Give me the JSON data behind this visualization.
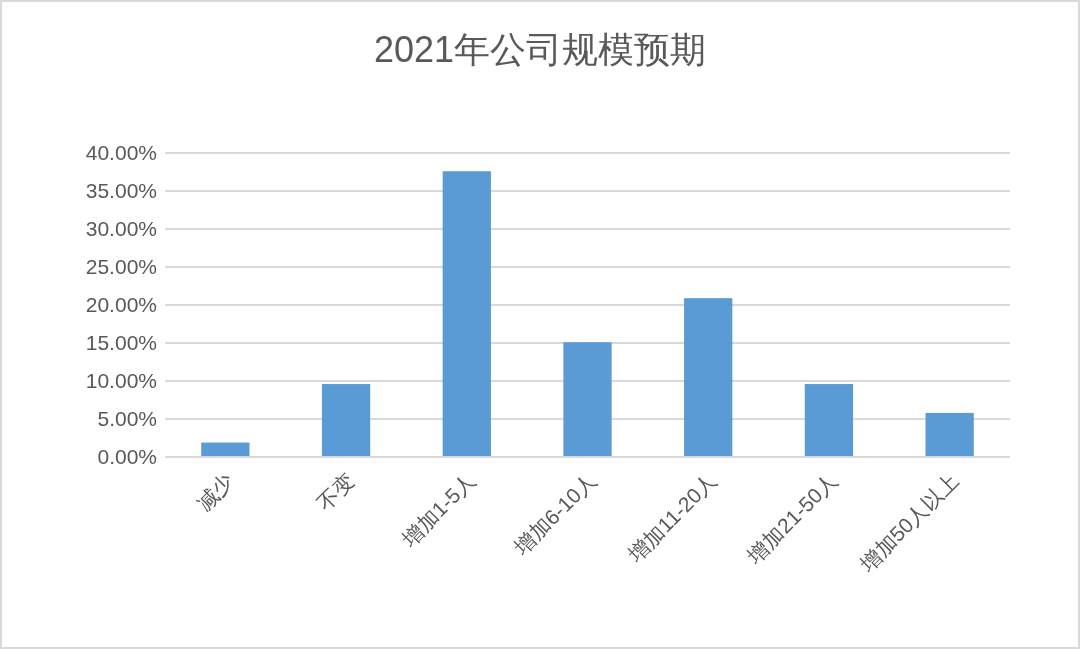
{
  "chart_data": {
    "type": "bar",
    "title": "2021年公司规模预期",
    "categories": [
      "减少",
      "不变",
      "增加1-5人",
      "增加6-10人",
      "增加11-20人",
      "增加21-50人",
      "增加50人以上"
    ],
    "values": [
      1.9,
      9.6,
      37.6,
      15.1,
      20.9,
      9.6,
      5.8
    ],
    "color": "#5b9bd5",
    "ylim": [
      0,
      40
    ],
    "yticks": [
      {
        "value": 0,
        "label": "0.00%"
      },
      {
        "value": 5,
        "label": "5.00%"
      },
      {
        "value": 10,
        "label": "10.00%"
      },
      {
        "value": 15,
        "label": "15.00%"
      },
      {
        "value": 20,
        "label": "20.00%"
      },
      {
        "value": 25,
        "label": "25.00%"
      },
      {
        "value": 30,
        "label": "30.00%"
      },
      {
        "value": 35,
        "label": "35.00%"
      },
      {
        "value": 40,
        "label": "40.00%"
      }
    ],
    "grid": "y"
  }
}
